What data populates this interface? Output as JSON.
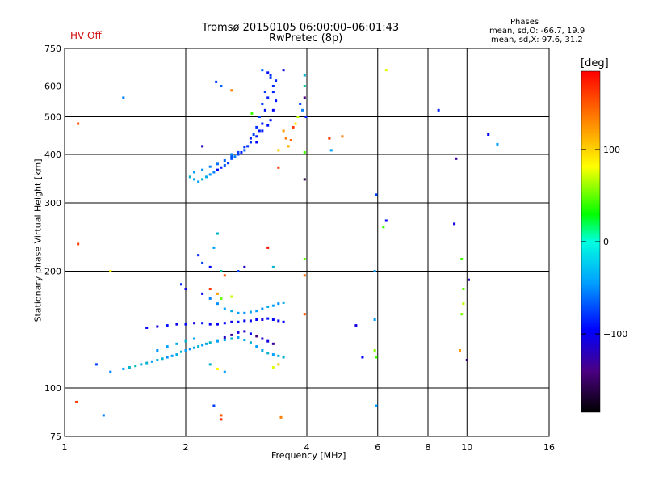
{
  "header": {
    "title_line1": "Tromsø 20150105 06:00:00–06:01:43",
    "title_line2": "RwPretec (8p)",
    "status": "HV Off"
  },
  "stats": {
    "title": "Phases",
    "o_line": "mean, sd,O: -66.7, 19.9",
    "x_line": "mean, sd,X:  97.6, 31.2"
  },
  "colorbar": {
    "unit": "[deg]",
    "ticks": [
      {
        "value": 100,
        "label": "100"
      },
      {
        "value": 0,
        "label": "0"
      },
      {
        "value": -100,
        "label": "−100"
      }
    ],
    "range": [
      -185,
      185
    ]
  },
  "chart_data": {
    "type": "scatter",
    "title": "Tromsø 20150105 06:00:00–06:01:43 RwPretec (8p)",
    "xlabel": "Frequency [MHz]",
    "ylabel": "Stationary phase Virtual Height [km]",
    "xscale": "log",
    "yscale": "log",
    "xlim": [
      1,
      16
    ],
    "ylim": [
      75,
      750
    ],
    "xticks": [
      {
        "value": 1,
        "label": "1"
      },
      {
        "value": 2,
        "label": "2"
      },
      {
        "value": 4,
        "label": "4"
      },
      {
        "value": 6,
        "label": "6"
      },
      {
        "value": 8,
        "label": "8"
      },
      {
        "value": 10,
        "label": "10"
      },
      {
        "value": 16,
        "label": "16"
      }
    ],
    "yticks": [
      {
        "value": 75,
        "label": "75"
      },
      {
        "value": 100,
        "label": "100"
      },
      {
        "value": 200,
        "label": "200"
      },
      {
        "value": 300,
        "label": "300"
      },
      {
        "value": 400,
        "label": "400"
      },
      {
        "value": 500,
        "label": "500"
      },
      {
        "value": 600,
        "label": "600"
      },
      {
        "value": 750,
        "label": "750"
      }
    ],
    "color_axis": "phase [deg]",
    "points": [
      [
        1.08,
        480,
        150
      ],
      [
        1.4,
        560,
        -60
      ],
      [
        2.38,
        615,
        -80
      ],
      [
        2.45,
        600,
        -70
      ],
      [
        2.6,
        585,
        130
      ],
      [
        2.92,
        510,
        20
      ],
      [
        3.1,
        660,
        -70
      ],
      [
        3.2,
        650,
        -95
      ],
      [
        3.25,
        630,
        -85
      ],
      [
        3.3,
        600,
        -90
      ],
      [
        3.15,
        580,
        -80
      ],
      [
        3.2,
        560,
        -90
      ],
      [
        3.1,
        540,
        -85
      ],
      [
        3.15,
        520,
        -95
      ],
      [
        3.05,
        500,
        -80
      ],
      [
        3.1,
        480,
        -90
      ],
      [
        3.0,
        470,
        -85
      ],
      [
        3.05,
        460,
        -95
      ],
      [
        2.95,
        450,
        -80
      ],
      [
        2.9,
        440,
        -90
      ],
      [
        3.0,
        430,
        -100
      ],
      [
        2.85,
        420,
        -85
      ],
      [
        2.8,
        410,
        -70
      ],
      [
        2.75,
        405,
        -90
      ],
      [
        2.7,
        400,
        -80
      ],
      [
        2.65,
        395,
        -60
      ],
      [
        2.6,
        390,
        -75
      ],
      [
        2.55,
        380,
        -85
      ],
      [
        2.5,
        375,
        -70
      ],
      [
        2.45,
        370,
        -90
      ],
      [
        2.4,
        365,
        -100
      ],
      [
        2.35,
        360,
        -60
      ],
      [
        2.3,
        355,
        -55
      ],
      [
        2.25,
        350,
        -45
      ],
      [
        2.2,
        345,
        -40
      ],
      [
        2.15,
        340,
        -50
      ],
      [
        2.1,
        345,
        -45
      ],
      [
        2.05,
        350,
        -40
      ],
      [
        2.1,
        360,
        -50
      ],
      [
        2.2,
        365,
        -55
      ],
      [
        2.3,
        372,
        -60
      ],
      [
        2.4,
        378,
        -65
      ],
      [
        2.5,
        386,
        -70
      ],
      [
        2.6,
        395,
        -75
      ],
      [
        2.7,
        405,
        -80
      ],
      [
        2.8,
        418,
        -85
      ],
      [
        2.9,
        430,
        -88
      ],
      [
        3.0,
        445,
        -90
      ],
      [
        3.1,
        460,
        -92
      ],
      [
        3.2,
        475,
        -95
      ],
      [
        3.25,
        490,
        -98
      ],
      [
        3.3,
        520,
        -100
      ],
      [
        3.35,
        550,
        -95
      ],
      [
        3.3,
        580,
        -90
      ],
      [
        3.35,
        620,
        -88
      ],
      [
        3.25,
        640,
        -85
      ],
      [
        3.5,
        660,
        -110
      ],
      [
        3.5,
        460,
        120
      ],
      [
        3.55,
        440,
        130
      ],
      [
        3.6,
        420,
        110
      ],
      [
        3.65,
        435,
        140
      ],
      [
        3.7,
        470,
        160
      ],
      [
        3.75,
        480,
        90
      ],
      [
        3.8,
        500,
        60
      ],
      [
        3.85,
        540,
        -80
      ],
      [
        3.9,
        520,
        -60
      ],
      [
        3.95,
        640,
        -40
      ],
      [
        3.95,
        600,
        -30
      ],
      [
        3.95,
        560,
        -140
      ],
      [
        3.98,
        500,
        -90
      ],
      [
        3.95,
        405,
        20
      ],
      [
        3.95,
        345,
        -160
      ],
      [
        3.4,
        370,
        160
      ],
      [
        3.4,
        410,
        100
      ],
      [
        2.2,
        420,
        -120
      ],
      [
        2.6,
        400,
        -60
      ],
      [
        4.55,
        440,
        160
      ],
      [
        4.6,
        410,
        -50
      ],
      [
        4.9,
        445,
        130
      ],
      [
        6.3,
        660,
        70
      ],
      [
        8.5,
        520,
        -90
      ],
      [
        9.4,
        390,
        -130
      ],
      [
        11.3,
        450,
        -100
      ],
      [
        11.9,
        425,
        -50
      ],
      [
        1.08,
        235,
        160
      ],
      [
        1.3,
        200,
        80
      ],
      [
        2.15,
        220,
        -90
      ],
      [
        2.2,
        210,
        -80
      ],
      [
        2.3,
        205,
        -100
      ],
      [
        2.35,
        230,
        -50
      ],
      [
        2.4,
        250,
        -40
      ],
      [
        2.45,
        200,
        -30
      ],
      [
        2.5,
        195,
        150
      ],
      [
        2.7,
        200,
        -80
      ],
      [
        2.8,
        205,
        -120
      ],
      [
        3.2,
        230,
        180
      ],
      [
        3.3,
        205,
        -40
      ],
      [
        3.95,
        215,
        30
      ],
      [
        3.95,
        195,
        140
      ],
      [
        5.95,
        315,
        -80
      ],
      [
        6.3,
        270,
        -100
      ],
      [
        6.2,
        260,
        20
      ],
      [
        5.9,
        200,
        -50
      ],
      [
        9.3,
        265,
        -110
      ],
      [
        9.7,
        215,
        20
      ],
      [
        10.1,
        190,
        -120
      ],
      [
        1.2,
        115,
        -80
      ],
      [
        1.3,
        110,
        -60
      ],
      [
        1.4,
        112,
        -50
      ],
      [
        1.45,
        113,
        -40
      ],
      [
        1.5,
        114,
        -35
      ],
      [
        1.55,
        115,
        -45
      ],
      [
        1.6,
        116,
        -40
      ],
      [
        1.65,
        117,
        -50
      ],
      [
        1.7,
        118,
        -45
      ],
      [
        1.75,
        119,
        -40
      ],
      [
        1.8,
        120,
        -55
      ],
      [
        1.85,
        121,
        -50
      ],
      [
        1.9,
        122,
        -45
      ],
      [
        1.95,
        124,
        -40
      ],
      [
        2.0,
        125,
        -50
      ],
      [
        2.05,
        126,
        -55
      ],
      [
        2.1,
        127,
        -45
      ],
      [
        2.15,
        128,
        -40
      ],
      [
        2.2,
        129,
        -50
      ],
      [
        2.25,
        130,
        -45
      ],
      [
        2.3,
        131,
        -40
      ],
      [
        2.4,
        132,
        -50
      ],
      [
        2.5,
        133,
        -45
      ],
      [
        2.6,
        134,
        -40
      ],
      [
        2.7,
        135,
        -50
      ],
      [
        2.8,
        133,
        -45
      ],
      [
        2.9,
        131,
        -40
      ],
      [
        3.0,
        128,
        -50
      ],
      [
        3.1,
        125,
        -45
      ],
      [
        3.2,
        123,
        -40
      ],
      [
        3.3,
        122,
        -50
      ],
      [
        3.4,
        121,
        -45
      ],
      [
        3.5,
        120,
        -40
      ],
      [
        1.7,
        125,
        -55
      ],
      [
        1.8,
        128,
        -50
      ],
      [
        1.9,
        130,
        -45
      ],
      [
        2.0,
        132,
        -40
      ],
      [
        2.1,
        134,
        -50
      ],
      [
        1.6,
        143,
        -100
      ],
      [
        1.7,
        144,
        -110
      ],
      [
        1.8,
        145,
        -95
      ],
      [
        1.9,
        146,
        -105
      ],
      [
        2.0,
        146,
        -100
      ],
      [
        2.1,
        147,
        -110
      ],
      [
        2.2,
        147,
        -95
      ],
      [
        2.3,
        146,
        -100
      ],
      [
        2.4,
        146,
        -105
      ],
      [
        2.5,
        147,
        -100
      ],
      [
        2.6,
        148,
        -110
      ],
      [
        2.7,
        148,
        -95
      ],
      [
        2.8,
        149,
        -100
      ],
      [
        2.9,
        149,
        -105
      ],
      [
        3.0,
        150,
        -100
      ],
      [
        3.1,
        150,
        -110
      ],
      [
        3.2,
        151,
        -95
      ],
      [
        3.3,
        150,
        -100
      ],
      [
        3.4,
        149,
        -105
      ],
      [
        3.5,
        148,
        -100
      ],
      [
        2.3,
        170,
        -60
      ],
      [
        2.4,
        165,
        -55
      ],
      [
        2.5,
        160,
        -50
      ],
      [
        2.6,
        158,
        -45
      ],
      [
        2.7,
        156,
        -50
      ],
      [
        2.8,
        156,
        -55
      ],
      [
        2.9,
        157,
        -45
      ],
      [
        3.0,
        158,
        -50
      ],
      [
        3.1,
        160,
        -55
      ],
      [
        3.2,
        162,
        -45
      ],
      [
        3.3,
        163,
        -50
      ],
      [
        3.4,
        165,
        -55
      ],
      [
        3.5,
        166,
        -45
      ],
      [
        2.5,
        135,
        -120
      ],
      [
        2.6,
        137,
        -130
      ],
      [
        2.7,
        139,
        -110
      ],
      [
        2.8,
        140,
        -120
      ],
      [
        2.9,
        138,
        -100
      ],
      [
        3.0,
        136,
        -140
      ],
      [
        3.1,
        134,
        -120
      ],
      [
        3.2,
        132,
        -110
      ],
      [
        3.3,
        130,
        -130
      ],
      [
        2.2,
        175,
        -100
      ],
      [
        2.0,
        180,
        -110
      ],
      [
        1.95,
        185,
        -90
      ],
      [
        2.3,
        180,
        160
      ],
      [
        2.4,
        175,
        120
      ],
      [
        2.45,
        170,
        30
      ],
      [
        2.6,
        172,
        60
      ],
      [
        2.3,
        115,
        -40
      ],
      [
        2.4,
        112,
        80
      ],
      [
        2.5,
        110,
        -50
      ],
      [
        3.3,
        113,
        70
      ],
      [
        3.4,
        115,
        100
      ],
      [
        2.35,
        90,
        -80
      ],
      [
        2.45,
        85,
        150
      ],
      [
        2.45,
        83,
        170
      ],
      [
        3.45,
        84,
        130
      ],
      [
        1.07,
        92,
        160
      ],
      [
        1.25,
        85,
        -60
      ],
      [
        3.95,
        155,
        150
      ],
      [
        5.3,
        145,
        -110
      ],
      [
        5.5,
        120,
        -100
      ],
      [
        5.9,
        125,
        40
      ],
      [
        5.95,
        120,
        20
      ],
      [
        5.9,
        150,
        -50
      ],
      [
        5.95,
        90,
        -50
      ],
      [
        9.6,
        125,
        120
      ],
      [
        9.7,
        155,
        40
      ],
      [
        9.8,
        165,
        60
      ],
      [
        10.0,
        118,
        -150
      ],
      [
        9.8,
        180,
        30
      ]
    ]
  }
}
